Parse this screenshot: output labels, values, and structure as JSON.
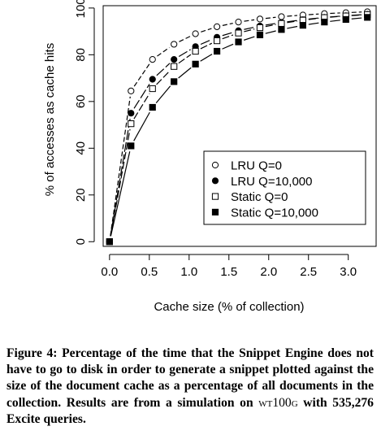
{
  "chart_data": {
    "type": "line",
    "title": "",
    "xlabel": "Cache size (% of collection)",
    "ylabel": "% of accesses as cache hits",
    "xlim": [
      -0.08,
      3.35
    ],
    "ylim": [
      -2,
      101
    ],
    "xticks": [
      0.0,
      0.5,
      1.0,
      1.5,
      2.0,
      2.5,
      3.0
    ],
    "xtick_labels": [
      "0.0",
      "0.5",
      "1.0",
      "1.5",
      "2.0",
      "2.5",
      "3.0"
    ],
    "yticks": [
      0,
      20,
      40,
      60,
      80,
      100
    ],
    "ytick_labels": [
      "0",
      "20",
      "40",
      "60",
      "80",
      "100"
    ],
    "grid": false,
    "legend_position": "center-right",
    "x": [
      0.0,
      0.27,
      0.54,
      0.81,
      1.08,
      1.35,
      1.62,
      1.89,
      2.16,
      2.43,
      2.7,
      2.97,
      3.24
    ],
    "series": [
      {
        "name": "LRU Q=0",
        "marker": "open-circle",
        "values": [
          0,
          64.5,
          78,
          84.5,
          89,
          92,
          94,
          95.3,
          96.3,
          97,
          97.6,
          98,
          98.4
        ]
      },
      {
        "name": "LRU Q=10,000",
        "marker": "filled-circle",
        "values": [
          0,
          55,
          69.5,
          78,
          83.5,
          87.5,
          90.3,
          92.3,
          93.8,
          95,
          96,
          96.7,
          97.3
        ]
      },
      {
        "name": "Static Q=0",
        "marker": "open-square",
        "values": [
          0,
          50.5,
          65.5,
          75,
          81.5,
          86,
          89.3,
          91.6,
          93.4,
          94.8,
          95.9,
          96.6,
          97.2
        ]
      },
      {
        "name": "Static Q=10,000",
        "marker": "filled-square",
        "values": [
          0,
          41,
          57.5,
          68.5,
          76,
          81.5,
          85.5,
          88.5,
          90.8,
          92.6,
          94,
          95.1,
          96
        ]
      }
    ]
  },
  "caption": {
    "label": "Figure 4:",
    "text_before": "Percentage of the time that the Snippet Engine does not have to go to disk in order to generate a snippet plotted against the size of the document cache as a percentage of all documents in the collection. Results are from a simulation on",
    "collection": "wt100g",
    "text_after": "with 535,276 Excite queries."
  }
}
